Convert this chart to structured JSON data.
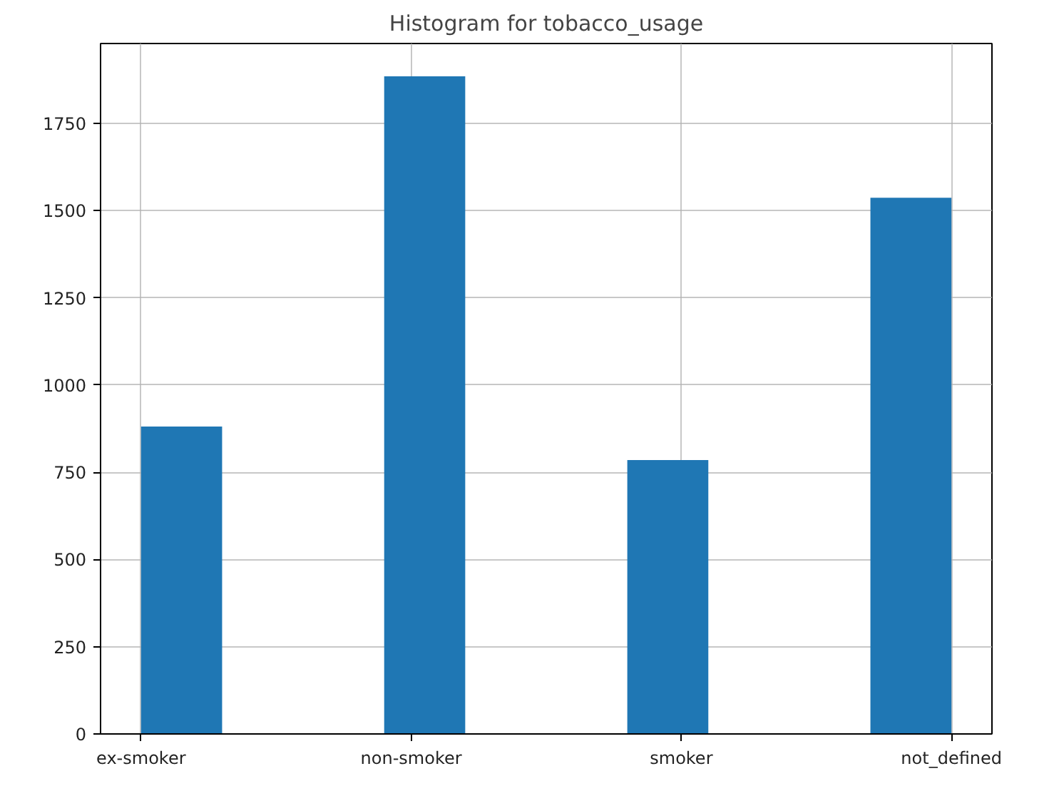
{
  "chart_data": {
    "type": "bar",
    "title": "Histogram for tobacco_usage",
    "categories": [
      "ex-smoker",
      "non-smoker",
      "smoker",
      "not_defined"
    ],
    "values": [
      881,
      1885,
      785,
      1537
    ],
    "color": "#1f77b4",
    "ylim": [
      0,
      1979
    ],
    "yticks": [
      0,
      250,
      500,
      750,
      1000,
      1250,
      1500,
      1750
    ],
    "grid": true
  }
}
